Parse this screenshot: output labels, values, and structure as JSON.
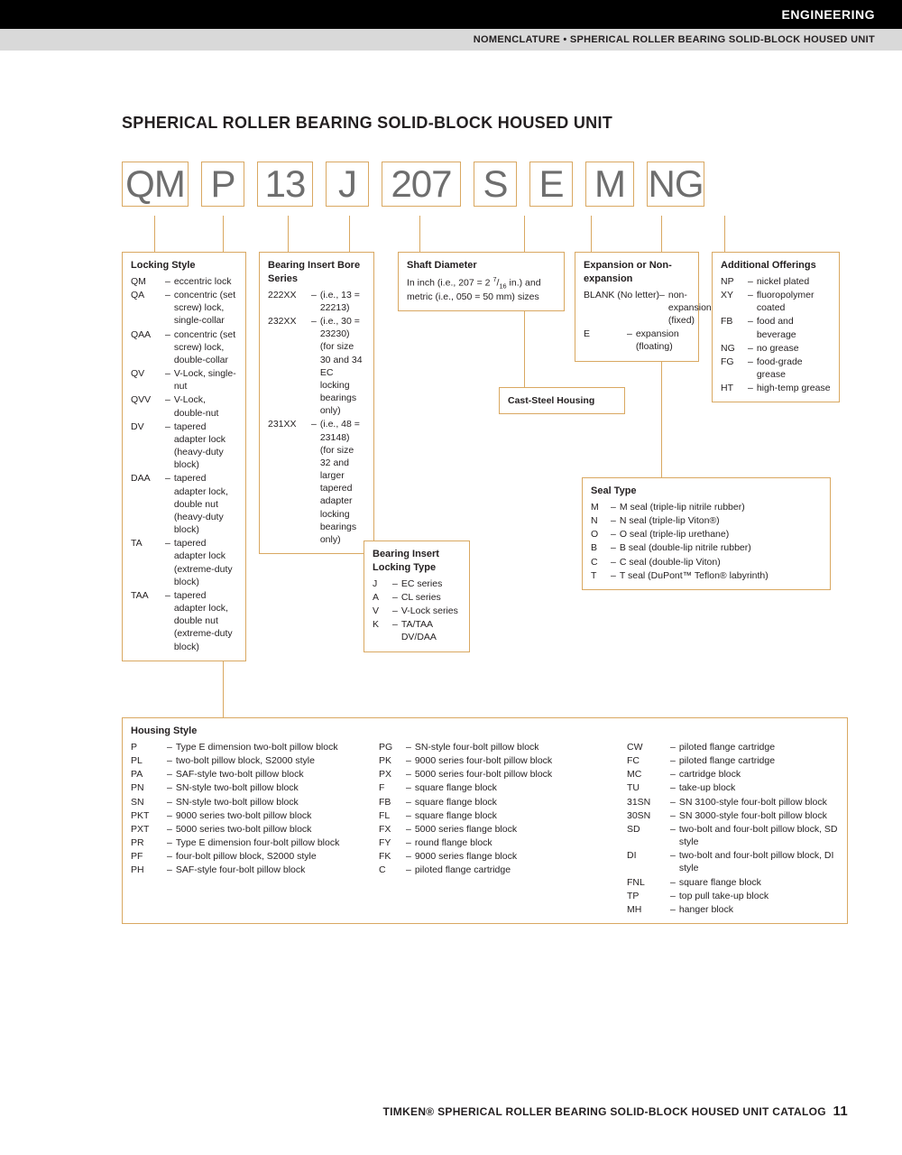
{
  "header_black": "ENGINEERING",
  "header_gray": "NOMENCLATURE • SPHERICAL ROLLER BEARING SOLID-BLOCK HOUSED UNIT",
  "main_title": "SPHERICAL ROLLER BEARING SOLID-BLOCK HOUSED UNIT",
  "code": [
    "QM",
    "P",
    "13",
    "J",
    "207",
    "S",
    "E",
    "M",
    "NG"
  ],
  "accent_color": "#d9a861",
  "code_text_color": "#6e6e6e",
  "box_lock": {
    "title": "Locking Style",
    "items": [
      [
        "QM",
        "eccentric lock"
      ],
      [
        "QA",
        "concentric (set screw) lock, single-collar"
      ],
      [
        "QAA",
        "concentric (set screw) lock, double-collar"
      ],
      [
        "QV",
        "V-Lock, single-nut"
      ],
      [
        "QVV",
        "V-Lock, double-nut"
      ],
      [
        "DV",
        "tapered adapter lock (heavy-duty block)"
      ],
      [
        "DAA",
        "tapered adapter lock, double nut (heavy-duty block)"
      ],
      [
        "TA",
        "tapered adapter lock (extreme-duty block)"
      ],
      [
        "TAA",
        "tapered adapter lock, double nut (extreme-duty block)"
      ]
    ]
  },
  "box_bore": {
    "title": "Bearing Insert Bore Series",
    "items": [
      [
        "222XX",
        "(i.e., 13 = 22213)"
      ],
      [
        "232XX",
        "(i.e., 30 = 23230) (for size 30 and 34 EC locking bearings only)"
      ],
      [
        "231XX",
        "(i.e., 48 = 23148) (for size 32 and larger tapered adapter locking bearings only)"
      ]
    ]
  },
  "box_shaft": {
    "title": "Shaft Diameter",
    "text": "In inch (i.e., 207 = 2 7/16 in.) and metric (i.e., 050 = 50 mm) sizes"
  },
  "box_exp": {
    "title": "Expansion or Non-expansion",
    "items": [
      [
        "BLANK (No letter)",
        "non-expansion (fixed)"
      ],
      [
        "E",
        "expansion (floating)"
      ]
    ]
  },
  "box_add": {
    "title": "Additional Offerings",
    "items": [
      [
        "NP",
        "nickel plated"
      ],
      [
        "XY",
        "fluoropolymer coated"
      ],
      [
        "FB",
        "food and beverage"
      ],
      [
        "NG",
        "no grease"
      ],
      [
        "FG",
        "food-grade grease"
      ],
      [
        "HT",
        "high-temp grease"
      ]
    ]
  },
  "box_cast": "Cast-Steel Housing",
  "box_seal": {
    "title": "Seal Type",
    "items": [
      [
        "M",
        "M seal (triple-lip nitrile rubber)"
      ],
      [
        "N",
        "N seal (triple-lip Viton®)"
      ],
      [
        "O",
        "O seal (triple-lip urethane)"
      ],
      [
        "B",
        "B seal (double-lip nitrile rubber)"
      ],
      [
        "C",
        "C seal (double-lip Viton)"
      ],
      [
        "T",
        "T seal (DuPont™ Teflon® labyrinth)"
      ]
    ]
  },
  "box_locktype": {
    "title": "Bearing Insert Locking Type",
    "items": [
      [
        "J",
        "EC series"
      ],
      [
        "A",
        "CL series"
      ],
      [
        "V",
        "V-Lock series"
      ],
      [
        "K",
        "TA/TAA DV/DAA"
      ]
    ]
  },
  "box_housing": {
    "title": "Housing Style",
    "col1": [
      [
        "P",
        "Type E dimension two-bolt pillow block"
      ],
      [
        "PL",
        "two-bolt pillow block, S2000 style"
      ],
      [
        "PA",
        "SAF-style two-bolt pillow block"
      ],
      [
        "PN",
        "SN-style two-bolt pillow block"
      ],
      [
        "SN",
        "SN-style two-bolt pillow block"
      ],
      [
        "PKT",
        "9000 series two-bolt pillow block"
      ],
      [
        "PXT",
        "5000 series two-bolt pillow block"
      ],
      [
        "PR",
        "Type E dimension four-bolt pillow block"
      ],
      [
        "PF",
        "four-bolt pillow block, S2000 style"
      ],
      [
        "PH",
        "SAF-style four-bolt pillow block"
      ]
    ],
    "col2": [
      [
        "PG",
        "SN-style four-bolt pillow block"
      ],
      [
        "PK",
        "9000 series four-bolt pillow block"
      ],
      [
        "PX",
        "5000 series four-bolt pillow block"
      ],
      [
        "F",
        "square flange block"
      ],
      [
        "FB",
        "square flange block"
      ],
      [
        "FL",
        "square flange block"
      ],
      [
        "FX",
        "5000 series flange block"
      ],
      [
        "FY",
        "round flange block"
      ],
      [
        "FK",
        "9000 series flange block"
      ],
      [
        "C",
        "piloted flange cartridge"
      ]
    ],
    "col3": [
      [
        "CW",
        "piloted flange cartridge"
      ],
      [
        "FC",
        "piloted flange cartridge"
      ],
      [
        "MC",
        "cartridge block"
      ],
      [
        "TU",
        "take-up block"
      ],
      [
        "31SN",
        "SN 3100-style four-bolt pillow block"
      ],
      [
        "30SN",
        "SN 3000-style four-bolt pillow block"
      ],
      [
        "SD",
        "two-bolt and four-bolt pillow block, SD style"
      ],
      [
        "DI",
        "two-bolt and four-bolt pillow block, DI style"
      ],
      [
        "FNL",
        "square flange block"
      ],
      [
        "TP",
        "top pull take-up block"
      ],
      [
        "MH",
        "hanger block"
      ]
    ]
  },
  "footer_text": "TIMKEN® SPHERICAL ROLLER BEARING SOLID-BLOCK HOUSED UNIT CATALOG",
  "footer_page": "11"
}
